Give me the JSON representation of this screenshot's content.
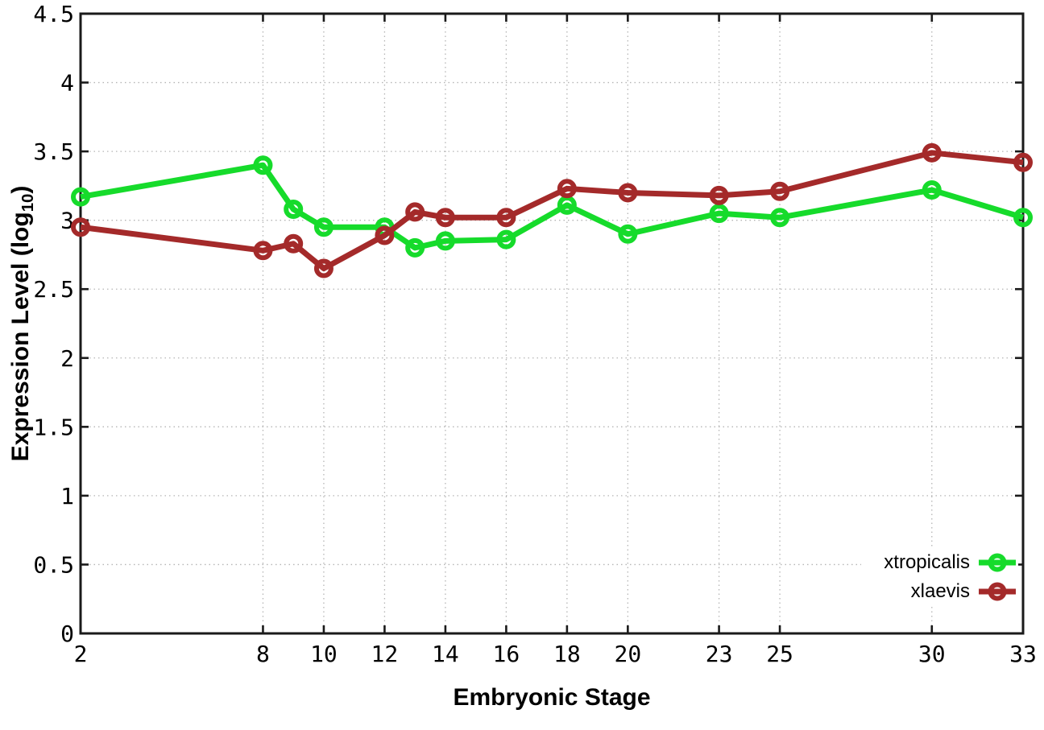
{
  "chart_data": {
    "type": "line",
    "title": "",
    "xlabel": "Embryonic Stage",
    "ylabel": "Expression Level (log10)",
    "ylabel_parts": {
      "main": "Expression Level (log",
      "sub": "10",
      "end": ")"
    },
    "xlim": [
      2,
      33
    ],
    "ylim": [
      0,
      4.5
    ],
    "grid": true,
    "grid_style": "dotted",
    "legend_position": "bottom-right-inside",
    "x_ticks": [
      2,
      8,
      10,
      12,
      14,
      16,
      18,
      20,
      23,
      25,
      30,
      33
    ],
    "x_tick_labels": [
      "2",
      "8",
      "10",
      "12",
      "14",
      "16",
      "18",
      "20",
      "23",
      "25",
      "30",
      "33"
    ],
    "y_ticks": [
      0,
      0.5,
      1,
      1.5,
      2,
      2.5,
      3,
      3.5,
      4,
      4.5
    ],
    "y_tick_labels": [
      "0",
      "0.5",
      "1",
      "1.5",
      "2",
      "2.5",
      "3",
      "3.5",
      "4",
      "4.5"
    ],
    "x": [
      2,
      8,
      9,
      10,
      12,
      13,
      14,
      16,
      18,
      20,
      23,
      25,
      30,
      33
    ],
    "series": [
      {
        "name": "xtropicalis",
        "color": "#16db2b",
        "marker": "open-circle",
        "values": [
          3.17,
          3.4,
          3.08,
          2.95,
          2.95,
          2.8,
          2.85,
          2.86,
          3.11,
          2.9,
          3.05,
          3.02,
          3.22,
          3.02
        ]
      },
      {
        "name": "xlaevis",
        "color": "#a42a2a",
        "marker": "open-circle",
        "values": [
          2.95,
          2.78,
          2.83,
          2.65,
          2.89,
          3.06,
          3.02,
          3.02,
          3.23,
          3.2,
          3.18,
          3.21,
          3.49,
          3.42
        ]
      }
    ],
    "colors": {
      "background": "#ffffff",
      "axis": "#1a1a1a",
      "grid": "#b5b5b5",
      "text": "#000000"
    }
  }
}
